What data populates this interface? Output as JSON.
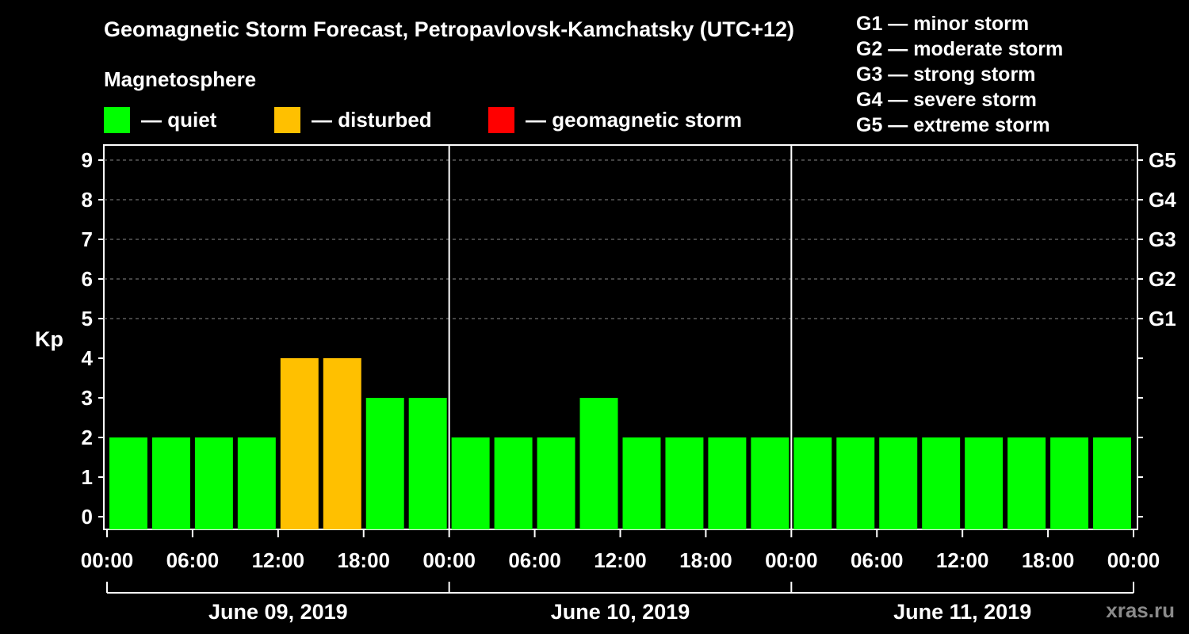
{
  "chart_data": {
    "type": "bar",
    "title": "Geomagnetic Storm Forecast, Petropavlovsk-Kamchatsky (UTC+12)",
    "ylabel": "Kp",
    "ylim": [
      0,
      9
    ],
    "y_ticks": [
      "0",
      "1",
      "2",
      "3",
      "4",
      "5",
      "6",
      "7",
      "8",
      "9"
    ],
    "right_ticks": [
      {
        "kp": 5,
        "label": "G1"
      },
      {
        "kp": 6,
        "label": "G2"
      },
      {
        "kp": 7,
        "label": "G3"
      },
      {
        "kp": 8,
        "label": "G4"
      },
      {
        "kp": 9,
        "label": "G5"
      }
    ],
    "x_tick_labels": [
      "00:00",
      "06:00",
      "12:00",
      "18:00",
      "00:00",
      "06:00",
      "12:00",
      "18:00",
      "00:00",
      "06:00",
      "12:00",
      "18:00",
      "00:00"
    ],
    "days": [
      "June 09, 2019",
      "June 10, 2019",
      "June 11, 2019"
    ],
    "values": [
      2,
      2,
      2,
      2,
      4,
      4,
      3,
      3,
      2,
      2,
      2,
      3,
      2,
      2,
      2,
      2,
      2,
      2,
      2,
      2,
      2,
      2,
      2,
      2
    ],
    "grid": "dashed horizontal at Kp 5-9",
    "colors": {
      "quiet": "#00ff00",
      "disturbed": "#ffc000",
      "storm": "#ff0000"
    }
  },
  "legend": {
    "title": "Magnetosphere",
    "items": [
      {
        "label": "— quiet",
        "color": "#00ff00"
      },
      {
        "label": "— disturbed",
        "color": "#ffc000"
      },
      {
        "label": "— geomagnetic storm",
        "color": "#ff0000"
      }
    ]
  },
  "g_scale": [
    "G1 — minor storm",
    "G2 — moderate storm",
    "G3 — strong storm",
    "G4 — severe storm",
    "G5 — extreme storm"
  ],
  "watermark": "xras.ru"
}
